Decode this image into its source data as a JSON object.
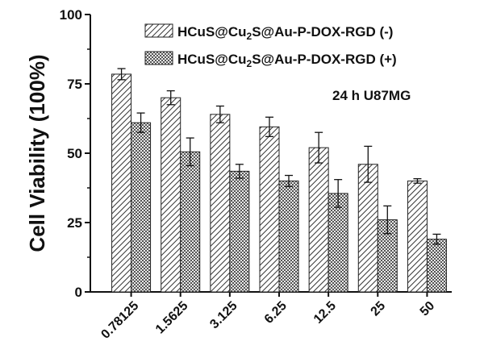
{
  "chart_data": {
    "type": "bar",
    "title": "",
    "xlabel": "",
    "ylabel": "Cell Viability (100%)",
    "ylim": [
      0,
      100
    ],
    "yticks": [
      "0",
      "25",
      "50",
      "75",
      "100"
    ],
    "categories": [
      "0.78125",
      "1.5625",
      "3.125",
      "6.25",
      "12.5",
      "25",
      "50"
    ],
    "series": [
      {
        "name": "HCuS@Cu2S@Au-P-DOX-RGD (-)",
        "pattern": "diagonal-hatch",
        "values": [
          78.5,
          70.0,
          64.0,
          59.5,
          52.0,
          46.0,
          40.0
        ],
        "errors": [
          2.0,
          2.5,
          3.0,
          3.5,
          5.5,
          6.5,
          0.8
        ]
      },
      {
        "name": "HCuS@Cu2S@Au-P-DOX-RGD (+)",
        "pattern": "crosshatch",
        "values": [
          61.0,
          50.5,
          43.5,
          40.0,
          35.5,
          26.0,
          19.0
        ],
        "errors": [
          3.5,
          5.0,
          2.5,
          2.0,
          5.0,
          5.0,
          1.8
        ]
      }
    ],
    "legend_position": "top-right",
    "annotation": "24 h U87MG",
    "grid": false
  },
  "legend": {
    "series1_prefix": "HCuS@Cu",
    "series1_sub1": "2",
    "series1_mid": "S@Au-P-DOX-RGD (-)",
    "series2_prefix": "HCuS@Cu",
    "series2_sub1": "2",
    "series2_mid": "S@Au-P-DOX-RGD (+)"
  },
  "colors": {
    "axis": "#111111",
    "bar_fill": "#ffffff",
    "hatch": "#333333"
  }
}
